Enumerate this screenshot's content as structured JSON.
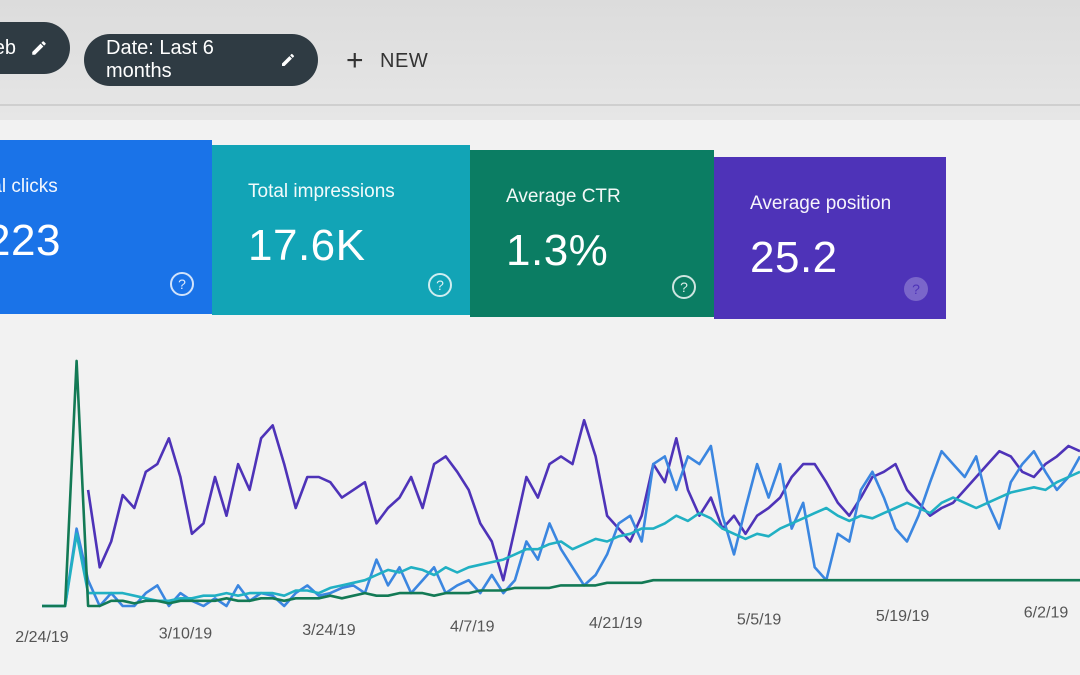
{
  "toolbar": {
    "web_chip_label": "eb",
    "date_chip_label": "Date: Last 6 months",
    "new_label": "NEW",
    "plus_icon": "+"
  },
  "cards": [
    {
      "label": "tal clicks",
      "value": "223",
      "color": "#1a73e8"
    },
    {
      "label": "Total impressions",
      "value": "17.6K",
      "color": "#12a4b6"
    },
    {
      "label": "Average CTR",
      "value": "1.3%",
      "color": "#0b7d63"
    },
    {
      "label": "Average position",
      "value": "25.2",
      "color": "#4e33b8"
    }
  ],
  "help_icon": "?",
  "chart_data": {
    "type": "line",
    "xlabel": "",
    "ylabel": "",
    "x_ticks": [
      "2/24/19",
      "3/10/19",
      "3/24/19",
      "4/7/19",
      "4/21/19",
      "5/5/19",
      "5/19/19",
      "6/2/19"
    ],
    "grid": false,
    "series": [
      {
        "metric": "position",
        "color": "#4e33b8",
        "values": [
          null,
          null,
          0.92,
          null,
          0.45,
          0.15,
          0.25,
          0.43,
          0.38,
          0.52,
          0.55,
          0.65,
          0.5,
          0.28,
          0.32,
          0.5,
          0.35,
          0.55,
          0.45,
          0.65,
          0.7,
          0.55,
          0.38,
          0.5,
          0.5,
          0.48,
          0.42,
          0.45,
          0.48,
          0.32,
          0.38,
          0.42,
          0.5,
          0.38,
          0.55,
          0.58,
          0.52,
          0.45,
          0.32,
          0.25,
          0.1,
          0.3,
          0.5,
          0.42,
          0.55,
          0.58,
          0.55,
          0.72,
          0.58,
          0.35,
          0.3,
          0.25,
          0.35,
          0.55,
          0.48,
          0.65,
          0.45,
          0.35,
          0.42,
          0.3,
          0.35,
          0.28,
          0.35,
          0.38,
          0.42,
          0.5,
          0.55,
          0.55,
          0.48,
          0.4,
          0.35,
          0.42,
          0.5,
          0.52,
          0.55,
          0.45,
          0.4,
          0.35,
          0.38,
          0.4,
          0.45,
          0.5,
          0.55,
          0.6,
          0.58,
          0.52,
          0.5,
          0.55,
          0.58,
          0.62,
          0.6
        ]
      },
      {
        "metric": "clicks",
        "color": "#3b86e0",
        "values": [
          0,
          0,
          0,
          0.3,
          0.1,
          0,
          0.05,
          0,
          0,
          0.05,
          0.08,
          0,
          0.05,
          0.02,
          0,
          0.03,
          0,
          0.08,
          0.02,
          0.05,
          0.04,
          0,
          0.05,
          0.08,
          0.04,
          0.05,
          0.07,
          0.08,
          0.05,
          0.18,
          0.08,
          0.15,
          0.05,
          0.1,
          0.15,
          0.05,
          0.08,
          0.1,
          0.05,
          0.12,
          0.05,
          0.1,
          0.25,
          0.18,
          0.32,
          0.22,
          0.15,
          0.08,
          0.12,
          0.2,
          0.32,
          0.35,
          0.25,
          0.55,
          0.58,
          0.45,
          0.58,
          0.55,
          0.62,
          0.35,
          0.2,
          0.38,
          0.55,
          0.42,
          0.55,
          0.3,
          0.4,
          0.15,
          0.1,
          0.28,
          0.25,
          0.45,
          0.52,
          0.42,
          0.3,
          0.25,
          0.35,
          0.48,
          0.6,
          0.55,
          0.5,
          0.58,
          0.4,
          0.3,
          0.48,
          0.55,
          0.6,
          0.52,
          0.45,
          0.5,
          0.58
        ]
      },
      {
        "metric": "impressions",
        "color": "#21b0c3",
        "values": [
          0,
          0,
          0,
          0.28,
          0.05,
          0.05,
          0.05,
          0.05,
          0.04,
          0.03,
          0.02,
          0.02,
          0.03,
          0.03,
          0.04,
          0.04,
          0.05,
          0.04,
          0.05,
          0.05,
          0.05,
          0.04,
          0.06,
          0.06,
          0.05,
          0.07,
          0.08,
          0.09,
          0.1,
          0.12,
          0.14,
          0.13,
          0.15,
          0.14,
          0.12,
          0.15,
          0.13,
          0.15,
          0.16,
          0.17,
          0.18,
          0.2,
          0.22,
          0.22,
          0.24,
          0.25,
          0.22,
          0.24,
          0.26,
          0.25,
          0.27,
          0.28,
          0.3,
          0.3,
          0.32,
          0.35,
          0.33,
          0.36,
          0.34,
          0.3,
          0.28,
          0.26,
          0.28,
          0.27,
          0.3,
          0.32,
          0.34,
          0.36,
          0.38,
          0.35,
          0.33,
          0.35,
          0.34,
          0.36,
          0.38,
          0.4,
          0.38,
          0.36,
          0.4,
          0.42,
          0.4,
          0.38,
          0.4,
          0.42,
          0.44,
          0.45,
          0.46,
          0.45,
          0.48,
          0.5,
          0.52
        ]
      },
      {
        "metric": "ctr",
        "color": "#137a55",
        "values": [
          0,
          0,
          0,
          0.95,
          0,
          0,
          0.02,
          0.02,
          0.01,
          0.02,
          0.02,
          0.01,
          0.02,
          0.02,
          0.02,
          0.02,
          0.03,
          0.02,
          0.02,
          0.03,
          0.03,
          0.02,
          0.03,
          0.03,
          0.03,
          0.04,
          0.03,
          0.04,
          0.05,
          0.04,
          0.04,
          0.05,
          0.05,
          0.05,
          0.04,
          0.05,
          0.05,
          0.05,
          0.06,
          0.06,
          0.06,
          0.07,
          0.07,
          0.07,
          0.07,
          0.08,
          0.08,
          0.08,
          0.08,
          0.09,
          0.09,
          0.09,
          0.09,
          0.1,
          0.1,
          0.1,
          0.1,
          0.1,
          0.1,
          0.1,
          0.1,
          0.1,
          0.1,
          0.1,
          0.1,
          0.1,
          0.1,
          0.1,
          0.1,
          0.1,
          0.1,
          0.1,
          0.1,
          0.1,
          0.1,
          0.1,
          0.1,
          0.1,
          0.1,
          0.1,
          0.1,
          0.1,
          0.1,
          0.1,
          0.1,
          0.1,
          0.1,
          0.1,
          0.1,
          0.1,
          0.1
        ]
      }
    ]
  }
}
